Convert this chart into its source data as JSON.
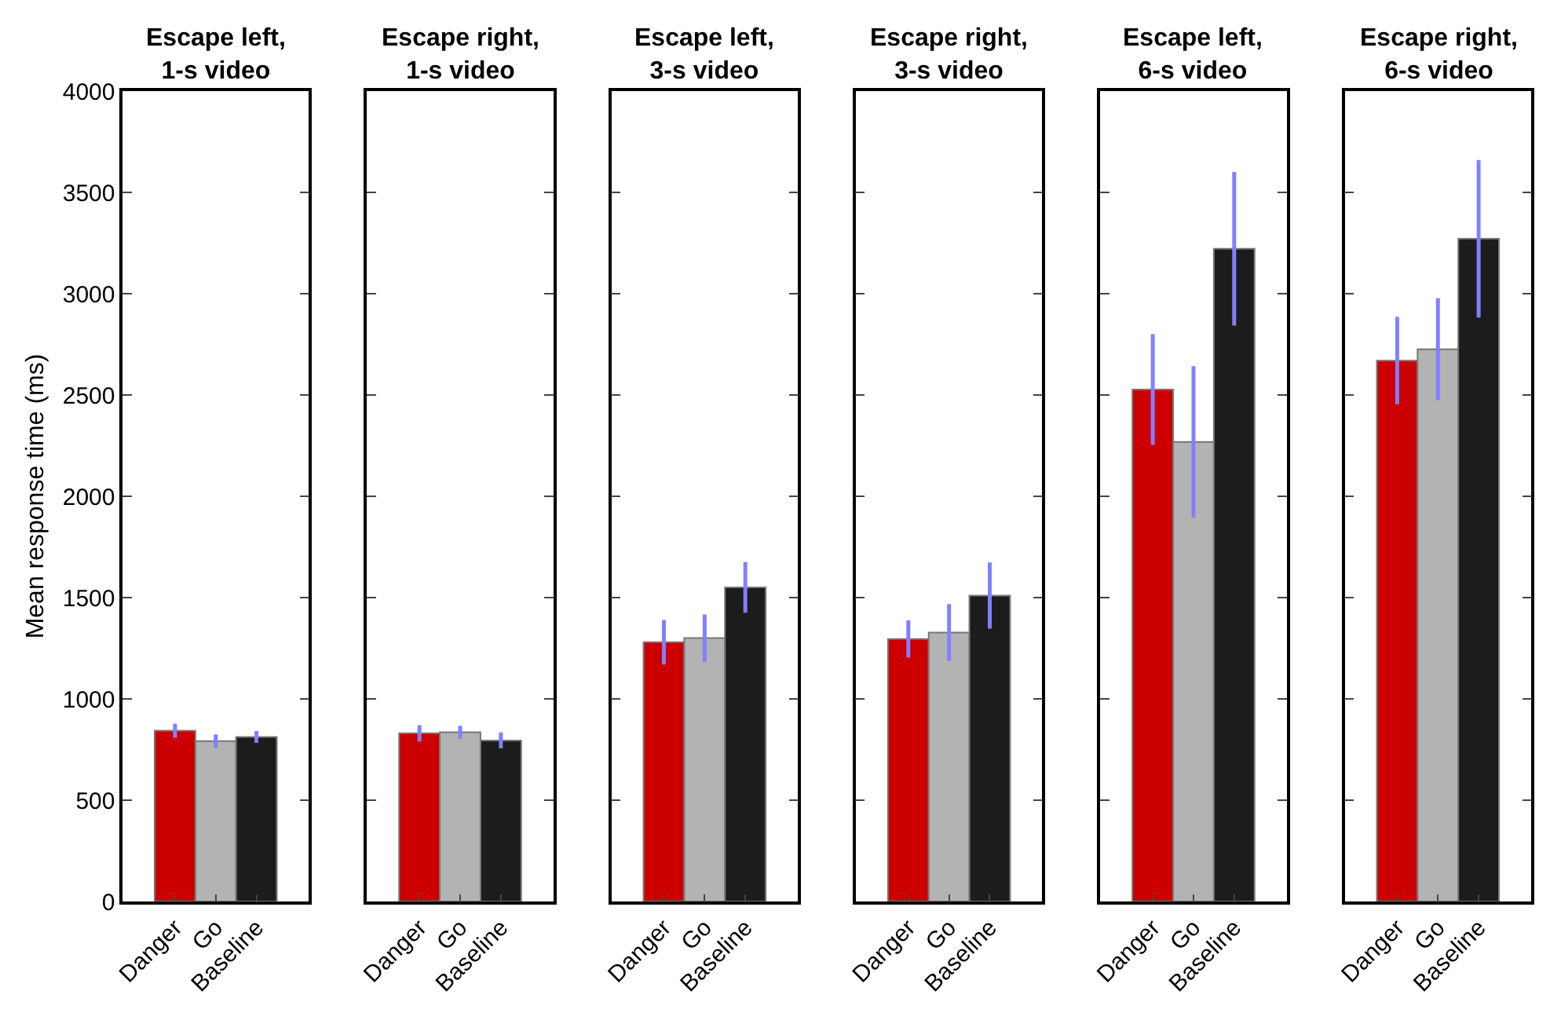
{
  "chart_data": [
    {
      "type": "bar",
      "title": "Escape left,\n1-s video",
      "ylabel": "Mean response time (ms)",
      "categories": [
        "Danger",
        "Go",
        "Baseline"
      ],
      "values": [
        843,
        792,
        812
      ],
      "errors": [
        35,
        33,
        29
      ],
      "colors": [
        "#cc0000",
        "#b3b3b3",
        "#1c1c1c"
      ],
      "ylim": [
        0,
        4000
      ],
      "yticks": [
        0,
        500,
        1000,
        1500,
        2000,
        2500,
        3000,
        3500,
        4000
      ]
    },
    {
      "type": "bar",
      "title": "Escape right,\n1-s video",
      "categories": [
        "Danger",
        "Go",
        "Baseline"
      ],
      "values": [
        830,
        835,
        795
      ],
      "errors": [
        40,
        32,
        39
      ],
      "colors": [
        "#cc0000",
        "#b3b3b3",
        "#1c1c1c"
      ],
      "ylim": [
        0,
        4000
      ],
      "yticks": [
        0,
        500,
        1000,
        1500,
        2000,
        2500,
        3000,
        3500,
        4000
      ],
      "tick_labels": "x"
    },
    {
      "type": "bar",
      "title": "Escape left,\n3-s video",
      "categories": [
        "Danger",
        "Go",
        "Baseline"
      ],
      "values": [
        1280,
        1300,
        1550
      ],
      "errors": [
        110,
        117,
        125
      ],
      "colors": [
        "#cc0000",
        "#b3b3b3",
        "#1c1c1c"
      ],
      "ylim": [
        0,
        4000
      ],
      "yticks": [
        0,
        500,
        1000,
        1500,
        2000,
        2500,
        3000,
        3500,
        4000
      ],
      "tick_labels": "x"
    },
    {
      "type": "bar",
      "title": "Escape right,\n3-s video",
      "categories": [
        "Danger",
        "Go",
        "Baseline"
      ],
      "values": [
        1296,
        1328,
        1510
      ],
      "errors": [
        92,
        140,
        163
      ],
      "colors": [
        "#cc0000",
        "#b3b3b3",
        "#1c1c1c"
      ],
      "ylim": [
        0,
        4000
      ],
      "yticks": [
        0,
        500,
        1000,
        1500,
        2000,
        2500,
        3000,
        3500,
        4000
      ],
      "tick_labels": "x"
    },
    {
      "type": "bar",
      "title": "Escape left,\n6-s video",
      "categories": [
        "Danger",
        "Go",
        "Baseline"
      ],
      "values": [
        2527,
        2268,
        3222
      ],
      "errors": [
        273,
        374,
        379
      ],
      "colors": [
        "#cc0000",
        "#b3b3b3",
        "#1c1c1c"
      ],
      "ylim": [
        0,
        4000
      ],
      "yticks": [
        0,
        500,
        1000,
        1500,
        2000,
        2500,
        3000,
        3500,
        4000
      ],
      "tick_labels": "x"
    },
    {
      "type": "bar",
      "title": "Escape right,\n6-s video",
      "categories": [
        "Danger",
        "Go",
        "Baseline"
      ],
      "values": [
        2670,
        2726,
        3271
      ],
      "errors": [
        216,
        252,
        389
      ],
      "colors": [
        "#cc0000",
        "#b3b3b3",
        "#1c1c1c"
      ],
      "ylim": [
        0,
        4000
      ],
      "yticks": [
        0,
        500,
        1000,
        1500,
        2000,
        2500,
        3000,
        3500,
        4000
      ],
      "tick_labels": "x"
    }
  ]
}
